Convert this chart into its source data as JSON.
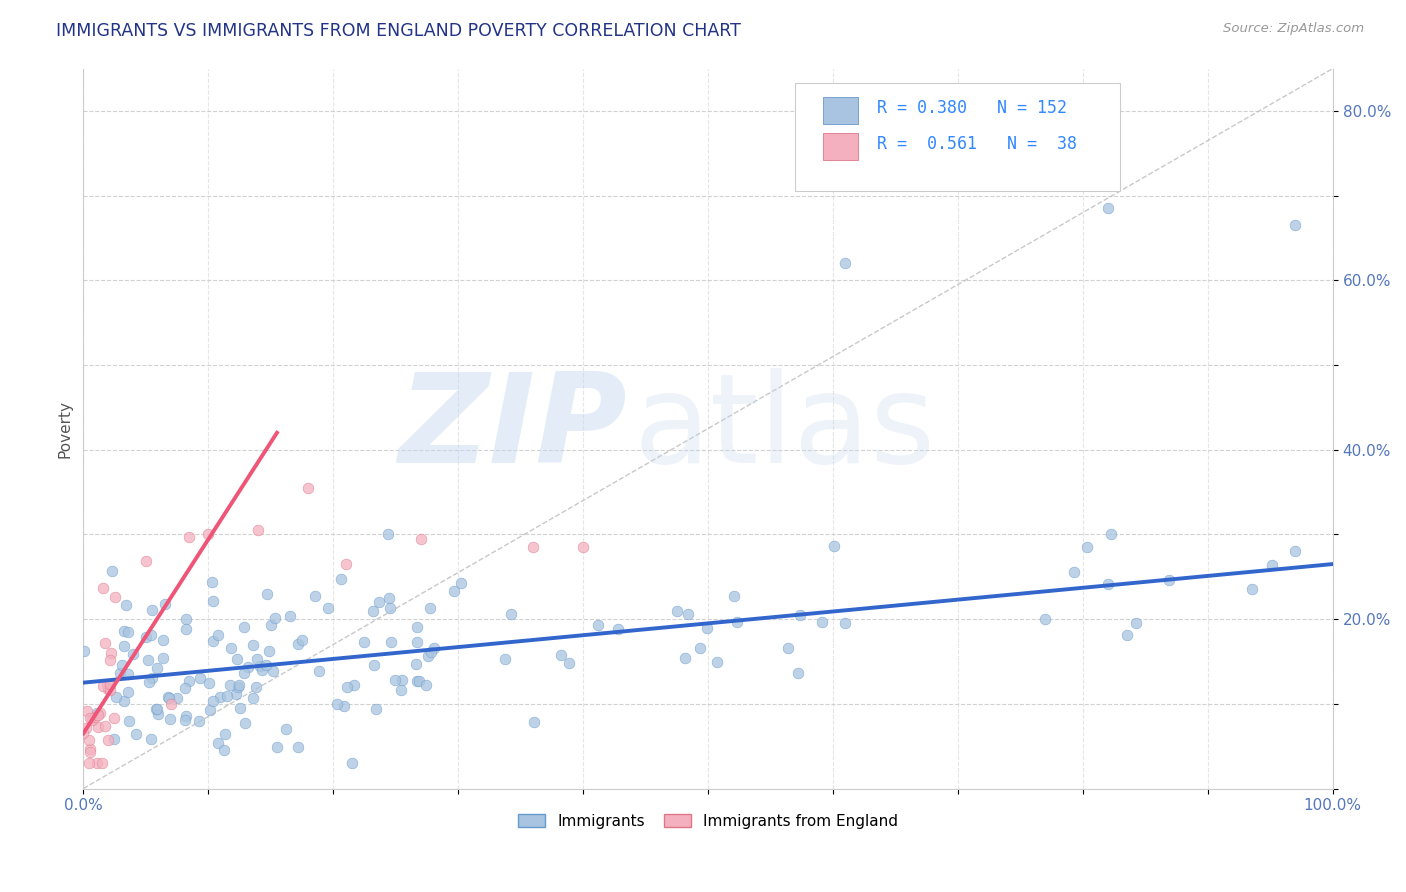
{
  "title": "IMMIGRANTS VS IMMIGRANTS FROM ENGLAND POVERTY CORRELATION CHART",
  "source": "Source: ZipAtlas.com",
  "ylabel": "Poverty",
  "xlim": [
    0.0,
    1.0
  ],
  "ylim": [
    0.0,
    0.85
  ],
  "x_tick_positions": [
    0.0,
    0.1,
    0.2,
    0.3,
    0.4,
    0.5,
    0.6,
    0.7,
    0.8,
    0.9,
    1.0
  ],
  "x_tick_labels": [
    "0.0%",
    "",
    "",
    "",
    "",
    "",
    "",
    "",
    "",
    "",
    "100.0%"
  ],
  "y_tick_positions": [
    0.0,
    0.1,
    0.2,
    0.3,
    0.4,
    0.5,
    0.6,
    0.7,
    0.8
  ],
  "y_tick_labels": [
    "",
    "",
    "20.0%",
    "",
    "40.0%",
    "",
    "60.0%",
    "",
    "80.0%"
  ],
  "blue_color": "#a8c4e0",
  "blue_edge": "#6699cc",
  "blue_line_color": "#3366cc",
  "pink_color": "#f4b0bf",
  "pink_edge": "#dd7788",
  "pink_line_color": "#ee5577",
  "ref_line_color": "#bbbbbb",
  "grid_color": "#cccccc",
  "title_color": "#223388",
  "source_color": "#999999",
  "axis_label_color": "#555555",
  "tick_color": "#5577bb",
  "legend_text_color": "#3388ff",
  "watermark_zip_color": "#c5d8ee",
  "watermark_atlas_color": "#c5d8ee",
  "background": "#ffffff",
  "blue_R": 0.38,
  "blue_N": 152,
  "pink_R": 0.561,
  "pink_N": 38,
  "blue_line": {
    "x0": 0.0,
    "x1": 1.0,
    "y0": 0.125,
    "y1": 0.265
  },
  "pink_line": {
    "x0": 0.0,
    "x1": 0.155,
    "y0": 0.065,
    "y1": 0.42
  }
}
